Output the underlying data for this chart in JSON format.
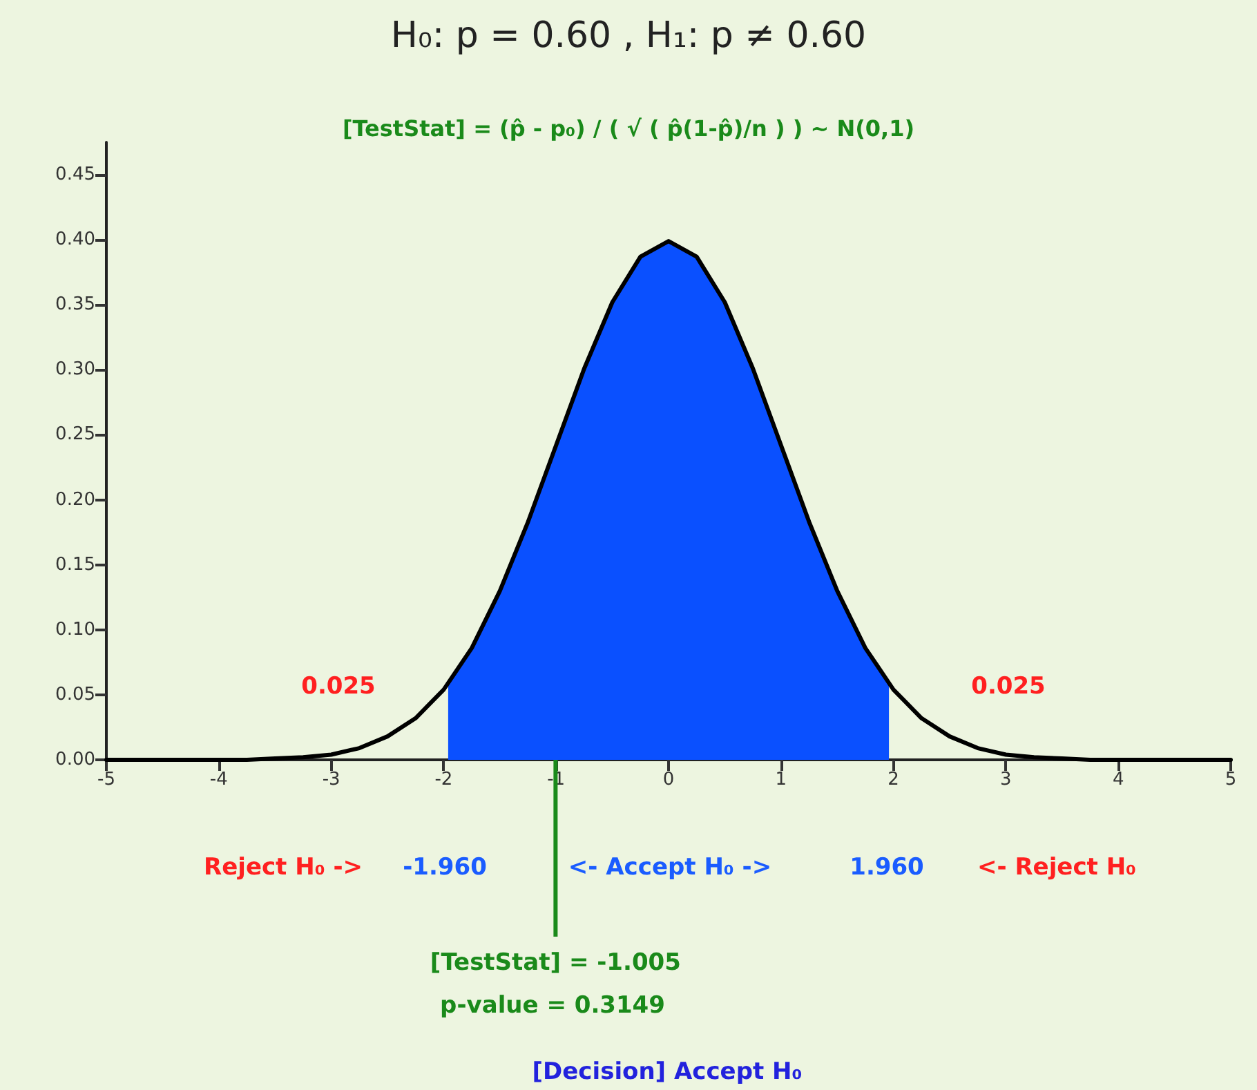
{
  "chart_data": {
    "type": "line",
    "title": "H₀: p = 0.60 , H₁: p ≠ 0.60",
    "subtitle": "[TestStat] = (p̂ - p₀) / ( √ ( p̂(1-p̂)/n ) ) ~ N(0,1)",
    "xlim": [
      -5,
      5
    ],
    "xticks": [
      -5,
      -4,
      -3,
      -2,
      -1,
      0,
      1,
      2,
      3,
      4,
      5
    ],
    "ylim": [
      0,
      0.475
    ],
    "yticks": [
      {
        "value": 0,
        "label": "0.00"
      },
      0.05,
      {
        "value": 0.1,
        "label": "0.10"
      },
      0.15,
      {
        "value": 0.2,
        "label": "0.20"
      },
      0.25,
      {
        "value": 0.3,
        "label": "0.30"
      },
      0.35,
      {
        "value": 0.4,
        "label": "0.40"
      },
      0.45
    ],
    "grid": false,
    "series": [
      {
        "type": "area",
        "color": "#0a50ff",
        "x": [
          -1.96,
          -1.75,
          -1.5,
          -1.25,
          -1,
          -0.75,
          -0.5,
          -0.25,
          0,
          0.25,
          0.5,
          0.75,
          1,
          1.25,
          1.5,
          1.75,
          1.96
        ],
        "values": [
          0.058,
          0.086,
          0.13,
          0.183,
          0.242,
          0.301,
          0.352,
          0.387,
          0.399,
          0.387,
          0.352,
          0.301,
          0.242,
          0.183,
          0.13,
          0.086,
          0.058
        ]
      },
      {
        "color": "#000000",
        "x": [
          -5,
          -4.5,
          -4,
          -3.75,
          -3.5,
          -3.25,
          -3,
          -2.75,
          -2.5,
          -2.25,
          -2,
          -1.75,
          -1.5,
          -1.25,
          -1,
          -0.75,
          -0.5,
          -0.25,
          0,
          0.25,
          0.5,
          0.75,
          1,
          1.25,
          1.5,
          1.75,
          2,
          2.25,
          2.5,
          2.75,
          3,
          3.25,
          3.5,
          3.75,
          4,
          4.5,
          5
        ],
        "values": [
          0,
          0,
          0,
          0,
          0.001,
          0.002,
          0.004,
          0.009,
          0.018,
          0.032,
          0.054,
          0.086,
          0.13,
          0.183,
          0.242,
          0.301,
          0.352,
          0.387,
          0.399,
          0.387,
          0.352,
          0.301,
          0.242,
          0.183,
          0.13,
          0.086,
          0.054,
          0.032,
          0.018,
          0.009,
          0.004,
          0.002,
          0.001,
          0,
          0,
          0,
          0
        ]
      }
    ],
    "ref_lines": [
      {
        "axis": "x",
        "value": -1.005,
        "label": "[TestStat] = -1.005",
        "color": "#1a8a1a"
      }
    ],
    "annotations": [
      "0.025",
      "0.025",
      "Reject H₀ ->",
      "-1.960",
      "<- Accept H₀ ->",
      "1.960",
      "<- Reject H₀",
      "p-value = 0.3149",
      "[Decision] Accept H₀"
    ]
  }
}
